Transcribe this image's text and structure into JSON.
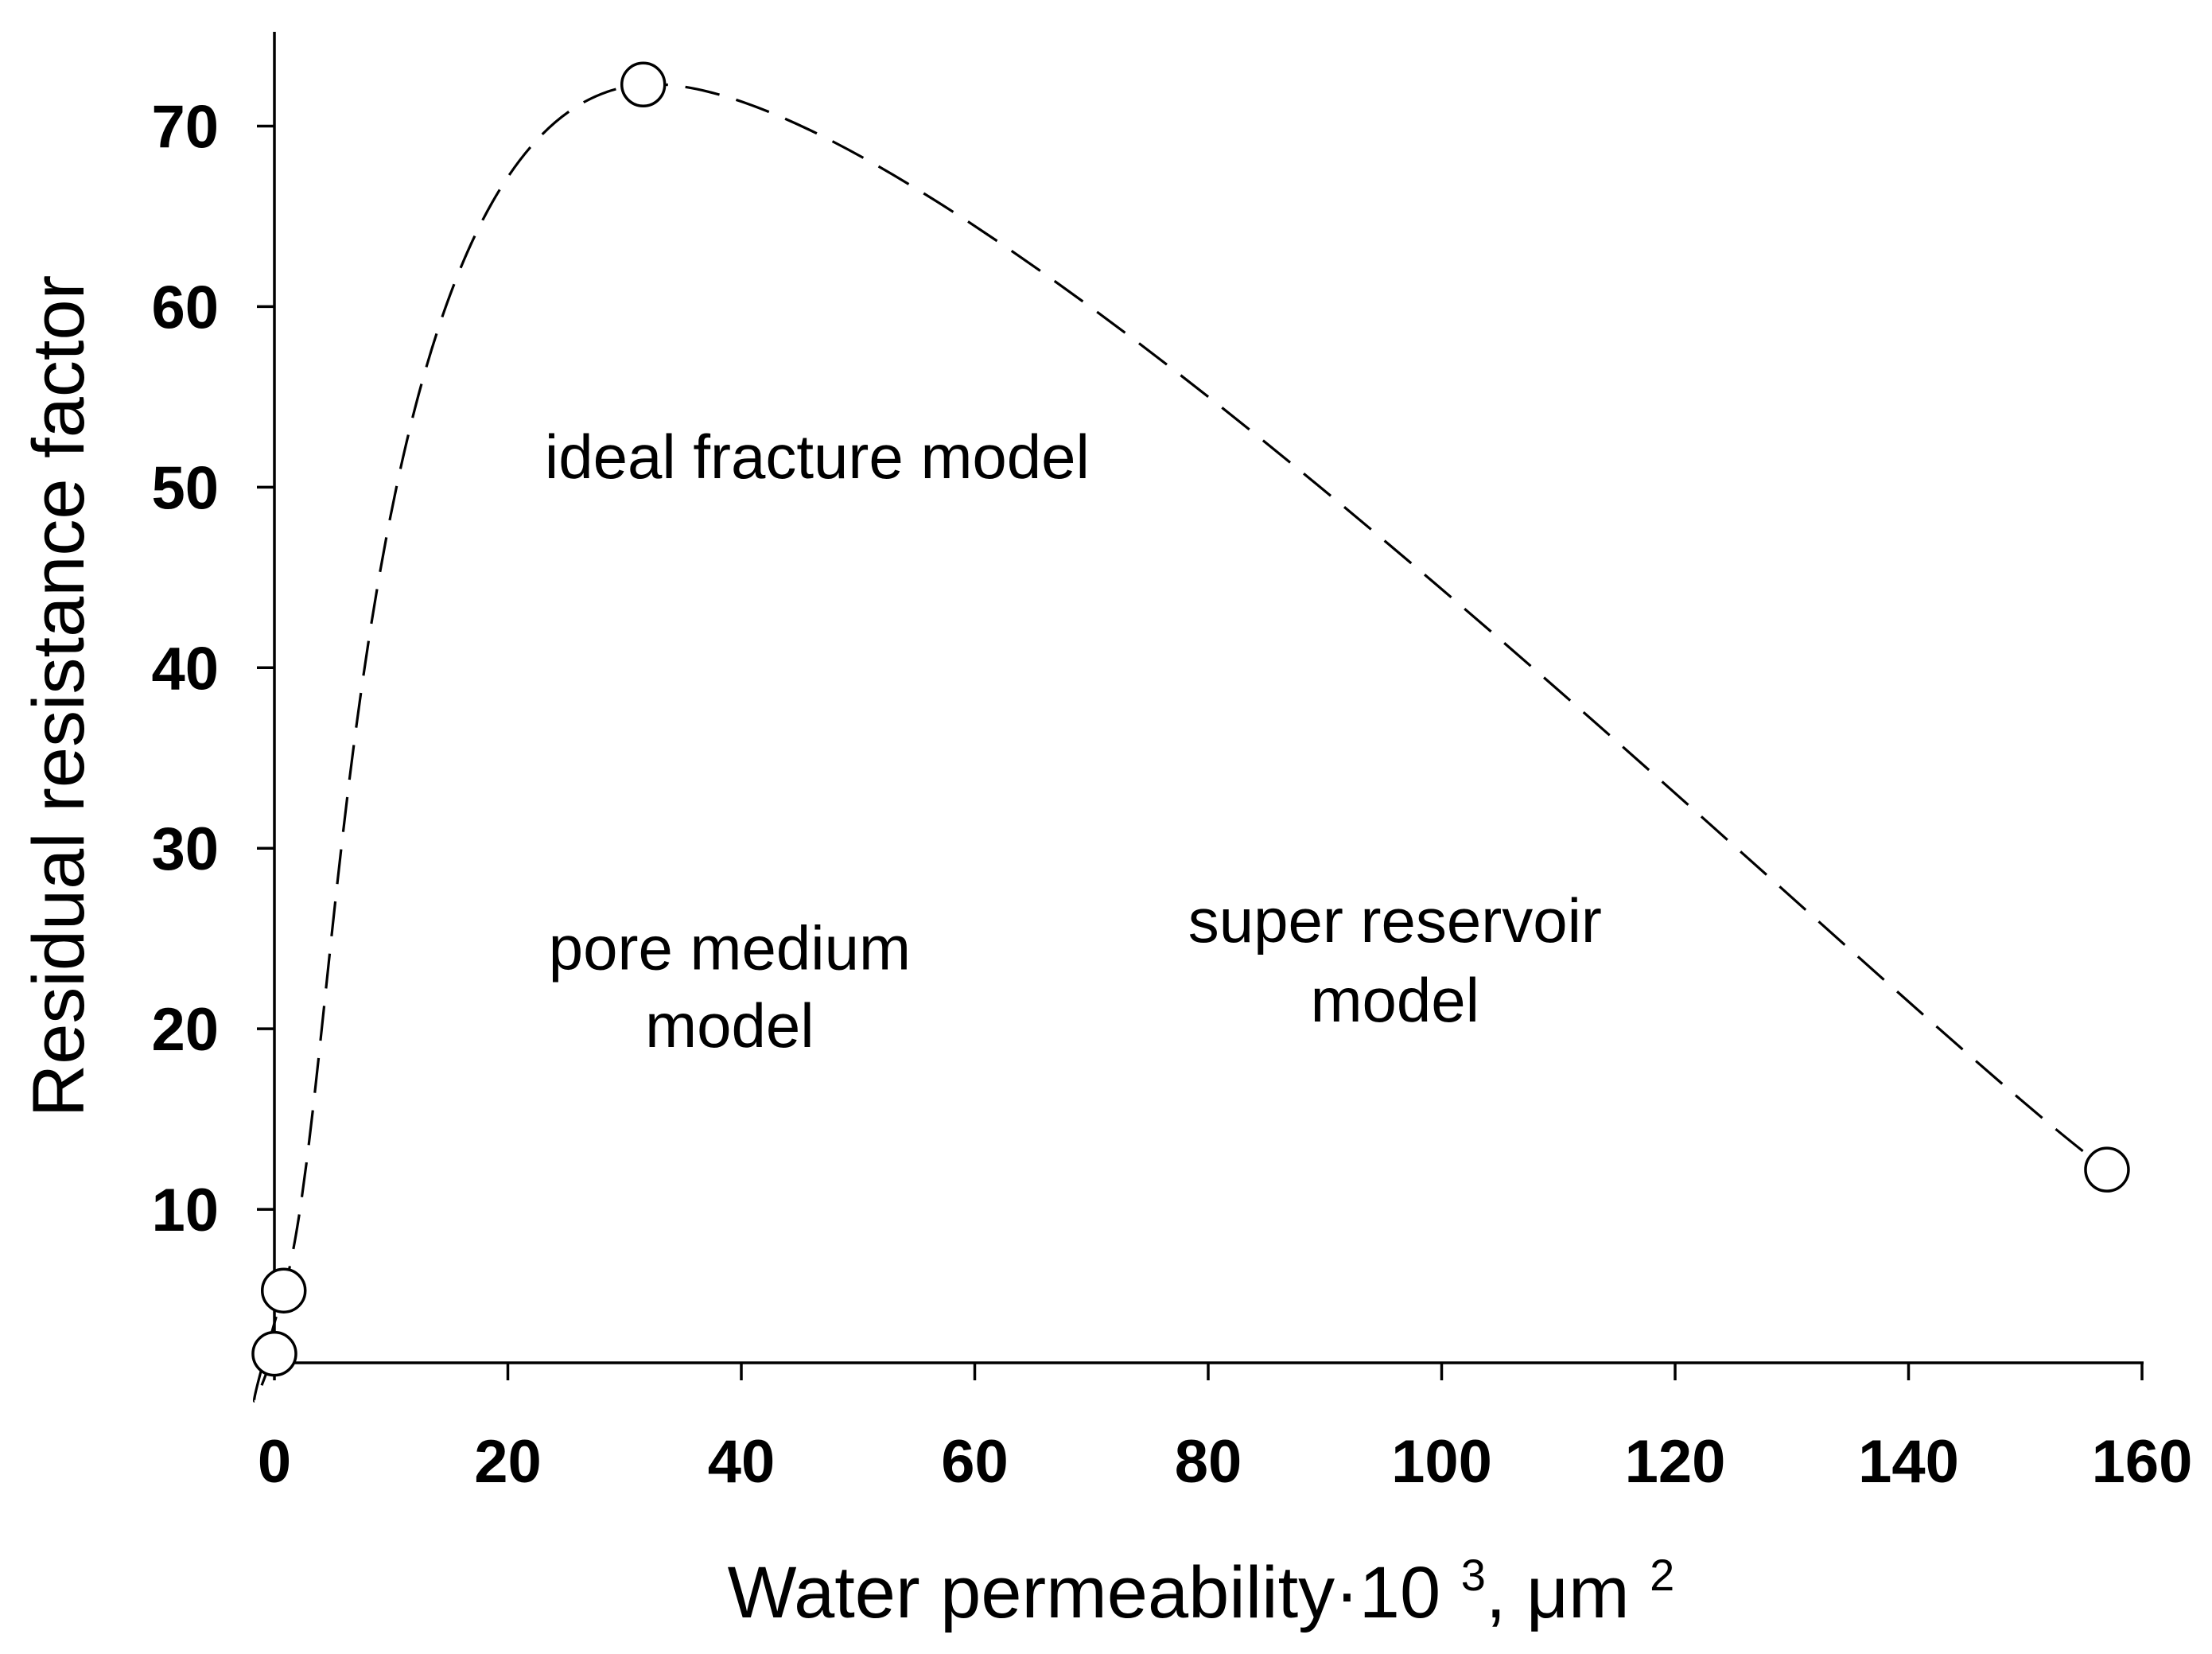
{
  "chart_data": {
    "type": "line",
    "xlabel": {
      "main": "Water permeability·10 ",
      "sup1": "3",
      "mid": ", μm ",
      "sup2": "2"
    },
    "ylabel": "Residual resistance factor",
    "xlim": [
      0,
      160
    ],
    "ylim": [
      1.5,
      75
    ],
    "x_ticks": [
      0,
      20,
      40,
      60,
      80,
      100,
      120,
      140,
      160
    ],
    "y_ticks": [
      10,
      20,
      30,
      40,
      50,
      60,
      70
    ],
    "grid": false,
    "legend": "none",
    "series": [
      {
        "line_style": "dashed",
        "marker": "open-circle",
        "x": [
          0,
          0.8,
          31.6,
          157
        ],
        "y": [
          2.0,
          5.5,
          72.3,
          12.2
        ]
      }
    ],
    "annotations": [
      {
        "text": "ideal fracture model",
        "x": 46.5,
        "y": 50.5
      },
      {
        "text": "pore medium",
        "x": 39,
        "y": 23.3
      },
      {
        "text": "model",
        "x": 39,
        "y": 19
      },
      {
        "text": "super reservoir",
        "x": 96,
        "y": 24.8
      },
      {
        "text": "model",
        "x": 96,
        "y": 20.4
      }
    ],
    "colors": {
      "line": "#000000",
      "marker_fill": "#ffffff",
      "text": "#000000"
    }
  }
}
